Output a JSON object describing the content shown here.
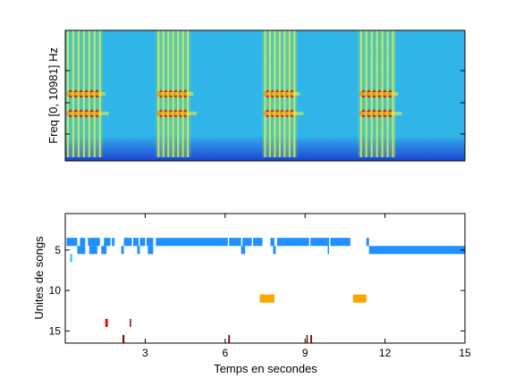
{
  "chart_data": [
    {
      "type": "heatmap",
      "title": "",
      "xlabel": "",
      "ylabel": "Freq [0, 10981] Hz",
      "xlim": [
        0,
        15
      ],
      "ylim": [
        0,
        10981
      ],
      "grid": false,
      "song_bursts_seconds": [
        [
          0.1,
          1.3
        ],
        [
          3.5,
          4.6
        ],
        [
          7.5,
          8.6
        ],
        [
          11.1,
          12.3
        ]
      ],
      "colors": {
        "background": "#2fb8e8",
        "low": "#1648d6",
        "mid": "#f2f23a",
        "high": "#c01010"
      }
    },
    {
      "type": "scatter",
      "title": "",
      "xlabel": "Temps en secondes",
      "ylabel": "Unites de songs",
      "xlim": [
        0,
        15
      ],
      "ylim": [
        16.5,
        0.5
      ],
      "xticks": [
        3,
        6,
        9,
        12,
        15
      ],
      "yticks": [
        5,
        10,
        15
      ],
      "grid": false,
      "series": [
        {
          "unit": 4,
          "color": "#1e90ff",
          "segments": [
            [
              0.05,
              0.45
            ],
            [
              0.55,
              0.75
            ],
            [
              0.85,
              1.3
            ],
            [
              1.45,
              1.7
            ],
            [
              1.75,
              1.85
            ],
            [
              2.2,
              2.5
            ],
            [
              2.55,
              2.75
            ],
            [
              2.8,
              3.0
            ],
            [
              3.05,
              3.3
            ],
            [
              3.4,
              6.1
            ],
            [
              6.15,
              6.6
            ],
            [
              6.65,
              7.0
            ],
            [
              7.05,
              7.4
            ],
            [
              7.7,
              7.85
            ],
            [
              7.95,
              9.15
            ],
            [
              9.2,
              9.9
            ],
            [
              9.95,
              10.7
            ],
            [
              11.3,
              11.4
            ]
          ]
        },
        {
          "unit": 5,
          "color": "#1e90ff",
          "segments": [
            [
              0.45,
              0.75
            ],
            [
              0.9,
              1.2
            ],
            [
              1.35,
              1.55
            ],
            [
              2.1,
              2.2
            ],
            [
              2.7,
              2.8
            ],
            [
              3.1,
              3.3
            ],
            [
              6.6,
              6.75
            ],
            [
              7.8,
              7.9
            ],
            [
              9.85,
              9.9
            ],
            [
              11.4,
              15.0
            ]
          ]
        },
        {
          "unit": 6,
          "color": "#40c8e8",
          "segments": [
            [
              0.18,
              0.26
            ]
          ]
        },
        {
          "unit": 11,
          "color": "#ffa500",
          "segments": [
            [
              7.3,
              7.85
            ],
            [
              10.8,
              11.3
            ]
          ]
        },
        {
          "unit": 14,
          "color": "#e01010",
          "segments": [
            [
              1.5,
              1.6
            ]
          ]
        },
        {
          "unit": 14,
          "color": "#a00000",
          "segments": [
            [
              2.42,
              2.46
            ]
          ]
        },
        {
          "unit": 16,
          "color": "#800000",
          "segments": [
            [
              2.15,
              2.22
            ],
            [
              6.12,
              6.18
            ],
            [
              9.05,
              9.1
            ],
            [
              9.2,
              9.26
            ]
          ]
        }
      ]
    }
  ]
}
